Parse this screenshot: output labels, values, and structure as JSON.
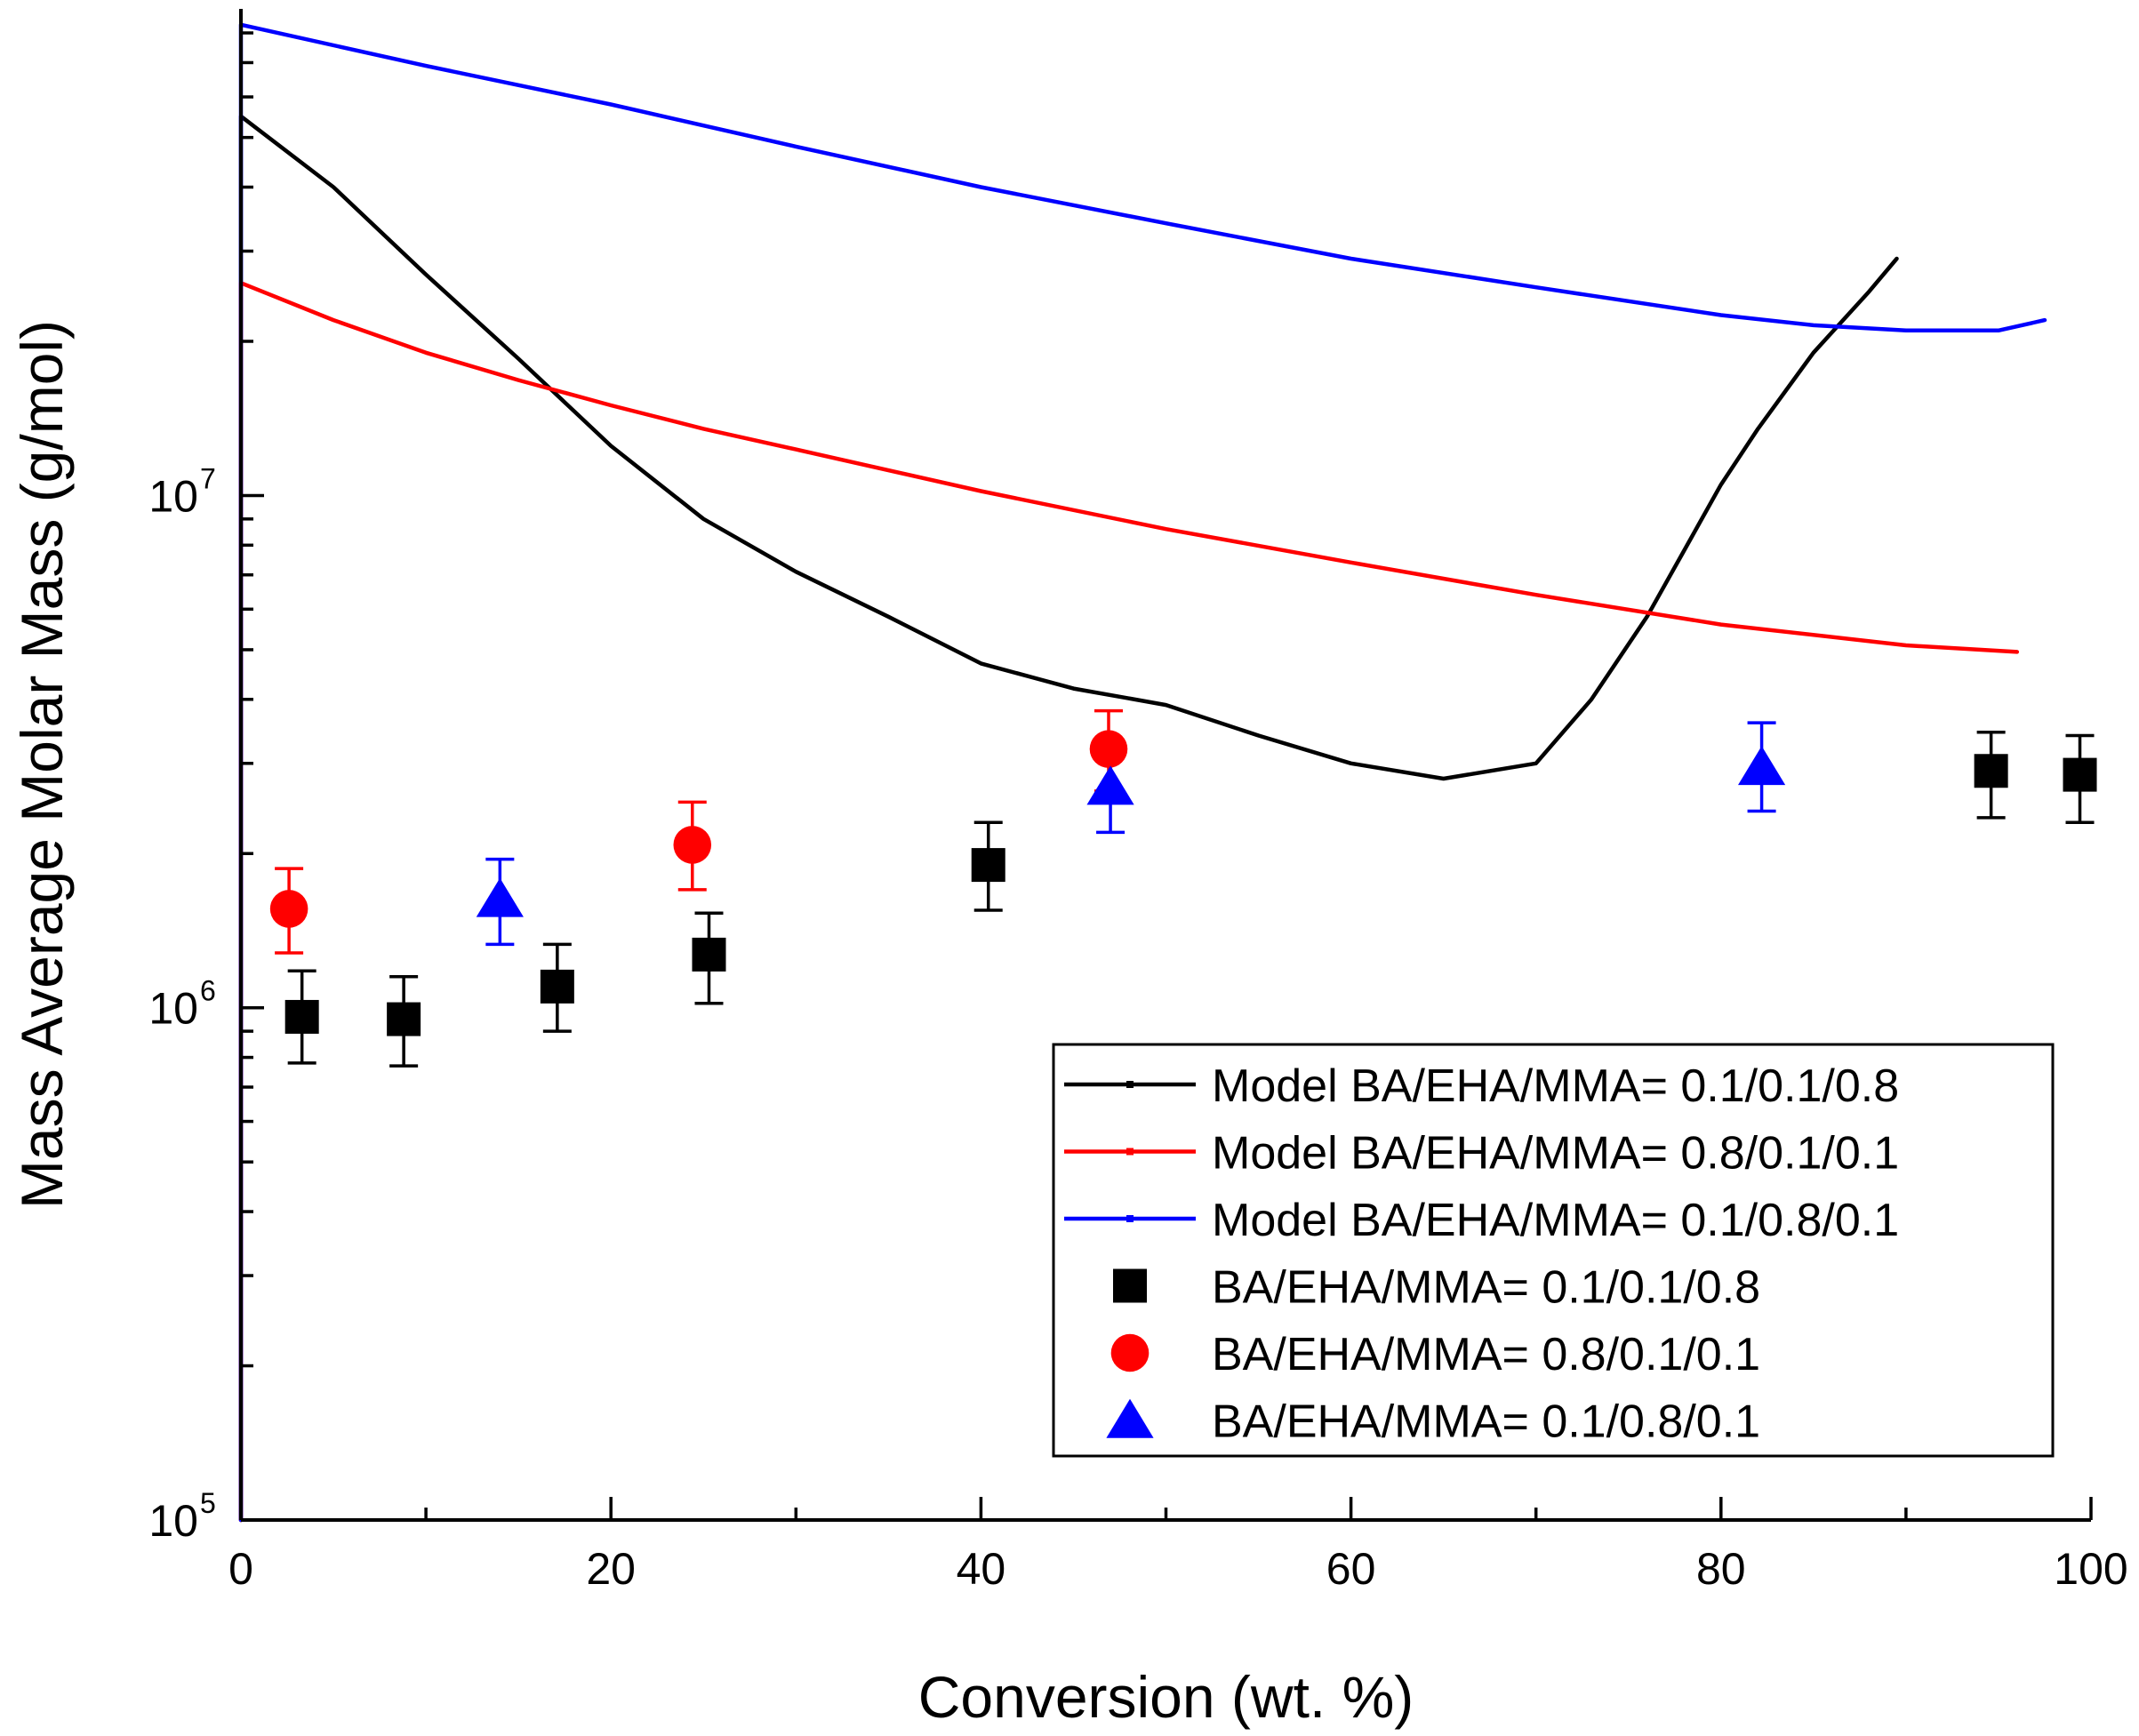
{
  "chart_data": {
    "type": "scatter",
    "title": "",
    "xlabel": "Conversion (wt. %)",
    "ylabel": "Mass Average Molar Mass (g/mol)",
    "xlim": [
      0,
      100
    ],
    "ylim_log10": [
      5,
      7.95
    ],
    "yscale": "log",
    "x_ticks": [
      {
        "value": 0,
        "label": "0"
      },
      {
        "value": 20,
        "label": "20"
      },
      {
        "value": 40,
        "label": "40"
      },
      {
        "value": 60,
        "label": "60"
      },
      {
        "value": 80,
        "label": "80"
      },
      {
        "value": 100,
        "label": "100"
      }
    ],
    "y_ticks": [
      {
        "exp": 5,
        "base": "10",
        "sup": "5"
      },
      {
        "exp": 6,
        "base": "10",
        "sup": "6"
      },
      {
        "exp": 7,
        "base": "10",
        "sup": "7"
      }
    ],
    "legend_position": "bottom-right",
    "colors": {
      "black": "#000000",
      "red": "#ff0000",
      "blue": "#0000ff"
    },
    "series": [
      {
        "name": "Model BA/EHA/MMA= 0.1/0.1/0.8",
        "kind": "line",
        "color": "#000000",
        "x": [
          0,
          5,
          10,
          15,
          20,
          25,
          30,
          35,
          40,
          45,
          50,
          55,
          60,
          65,
          70,
          73,
          76,
          78,
          80,
          82,
          85,
          88,
          89.5
        ],
        "y": [
          55000000,
          40000000,
          27000000,
          18500000,
          12500000,
          9000000,
          7100000,
          5800000,
          4700000,
          4200000,
          3900000,
          3400000,
          3000000,
          2800000,
          3000000,
          4000000,
          5800000,
          7800000,
          10500000,
          13500000,
          19000000,
          25000000,
          29000000
        ]
      },
      {
        "name": "Model BA/EHA/MMA= 0.8/0.1/0.1",
        "kind": "line",
        "color": "#ff0000",
        "x": [
          0,
          5,
          10,
          15,
          20,
          25,
          30,
          40,
          50,
          60,
          70,
          80,
          90,
          96
        ],
        "y": [
          26000000,
          22000000,
          19000000,
          16800000,
          15000000,
          13500000,
          12300000,
          10200000,
          8600000,
          7400000,
          6400000,
          5600000,
          5100000,
          4950000
        ]
      },
      {
        "name": "Model BA/EHA/MMA= 0.1/0.8/0.1",
        "kind": "line",
        "color": "#0000ff",
        "x": [
          0,
          10,
          20,
          30,
          40,
          50,
          60,
          70,
          80,
          85,
          90,
          95,
          97.5
        ],
        "y": [
          83000000,
          69000000,
          58000000,
          48000000,
          40000000,
          34000000,
          29000000,
          25500000,
          22500000,
          21500000,
          21000000,
          21000000,
          22000000
        ]
      },
      {
        "name": "BA/EHA/MMA= 0.1/0.1/0.8",
        "kind": "points",
        "marker": "square",
        "color": "#000000",
        "x": [
          3.3,
          8.8,
          17.1,
          25.3,
          40.4,
          94.6,
          99.4
        ],
        "y": [
          960000,
          950000,
          1100000,
          1270000,
          1900000,
          2900000,
          2850000
        ],
        "err_low": [
          780000,
          770000,
          900000,
          1020000,
          1550000,
          2350000,
          2300000
        ],
        "err_high": [
          1180000,
          1150000,
          1330000,
          1530000,
          2300000,
          3450000,
          3400000
        ]
      },
      {
        "name": "BA/EHA/MMA= 0.8/0.1/0.1",
        "kind": "points",
        "marker": "circle",
        "color": "#ff0000",
        "x": [
          2.6,
          24.4,
          46.9
        ],
        "y": [
          1560000,
          2080000,
          3200000
        ],
        "err_low": [
          1280000,
          1700000,
          2650000
        ],
        "err_high": [
          1870000,
          2520000,
          3800000
        ]
      },
      {
        "name": "BA/EHA/MMA= 0.1/0.8/0.1",
        "kind": "points",
        "marker": "triangle",
        "color": "#0000ff",
        "x": [
          14.0,
          47.0,
          82.2
        ],
        "y": [
          1630000,
          2700000,
          2950000
        ],
        "err_low": [
          1330000,
          2200000,
          2420000
        ],
        "err_high": [
          1950000,
          3200000,
          3600000
        ]
      }
    ]
  }
}
